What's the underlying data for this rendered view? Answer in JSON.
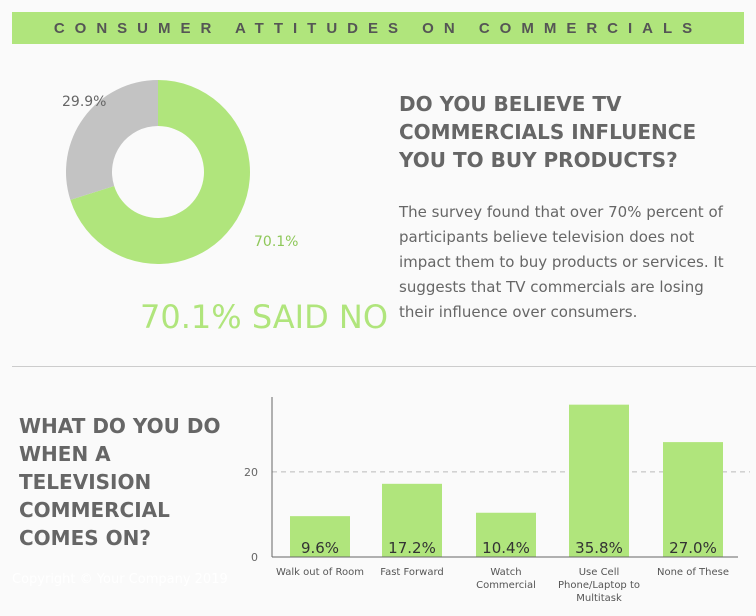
{
  "banner": {
    "title": "CONSUMER ATTITUDES ON COMMERCIALS"
  },
  "donut": {
    "type": "pie",
    "slices": [
      {
        "label": "70.1%",
        "value": 70.1,
        "color": "#b0e57c"
      },
      {
        "label": "29.9%",
        "value": 29.9,
        "color": "#c3c3c3"
      }
    ]
  },
  "headline": "70.1% SAID NO",
  "q1": {
    "title": "DO YOU BELIEVE TV COMMERCIALS INFLUENCE YOU TO BUY PRODUCTS?",
    "description": "The survey found that over 70% percent of participants believe television does not impact them to buy products or services. It suggests that TV commercials are losing their influence over consumers."
  },
  "q2": {
    "title": "WHAT DO YOU DO WHEN A TELEVISION COMMERCIAL COMES ON?"
  },
  "footer": {
    "copyright": "Copyright © Your Company 2019"
  },
  "chart_data": {
    "type": "bar",
    "categories": [
      "Walk out of Room",
      "Fast Forward",
      "Watch Commercial",
      "Use Cell Phone/Laptop to Multitask",
      "None of These"
    ],
    "values": [
      9.6,
      17.2,
      10.4,
      35.8,
      27.0
    ],
    "data_labels": [
      "9.6%",
      "17.2%",
      "10.4%",
      "35.8%",
      "27.0%"
    ],
    "yticks": [
      "0",
      "20"
    ],
    "ylim": [
      0,
      37.6
    ],
    "grid": "dashed at 20",
    "color": "#b0e57c"
  }
}
